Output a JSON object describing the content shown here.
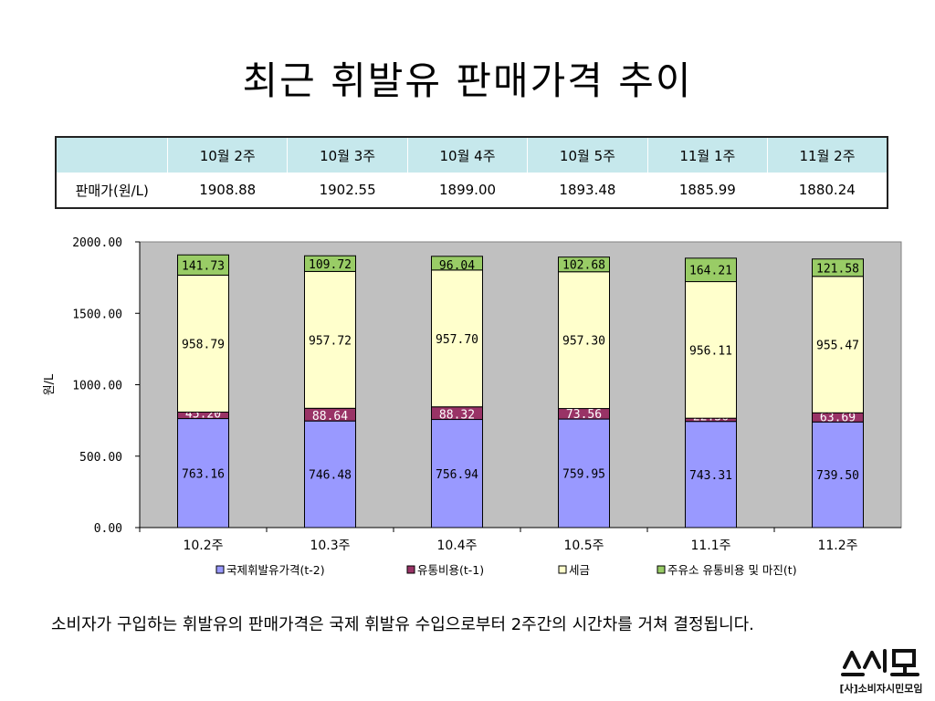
{
  "title": "최근 휘발유 판매가격 추이",
  "table": {
    "headers": [
      "",
      "10월 2주",
      "10월 3주",
      "10월 4주",
      "10월 5주",
      "11월 1주",
      "11월 2주"
    ],
    "row_label": "판매가(원/L)",
    "values": [
      "1908.88",
      "1902.55",
      "1899.00",
      "1893.48",
      "1885.99",
      "1880.24"
    ]
  },
  "chart_data": {
    "type": "bar",
    "stacked": true,
    "categories": [
      "10.2주",
      "10.3주",
      "10.4주",
      "10.5주",
      "11.1주",
      "11.2주"
    ],
    "ylabel": "원/L",
    "ylim": [
      0,
      2000
    ],
    "yticks": [
      "0.00",
      "500.00",
      "1000.00",
      "1500.00",
      "2000.00"
    ],
    "grid": false,
    "legend_position": "bottom",
    "series": [
      {
        "name": "국제휘발유가격(t-2)",
        "color": "#9999ff",
        "values": [
          763.16,
          746.48,
          756.94,
          759.95,
          743.31,
          739.5
        ],
        "labels": [
          "763.16",
          "746.48",
          "756.94",
          "759.95",
          "743.31",
          "739.50"
        ]
      },
      {
        "name": "유통비용(t-1)",
        "color": "#993366",
        "values": [
          45.2,
          88.64,
          88.32,
          73.56,
          22.36,
          63.69
        ],
        "labels": [
          "45.20",
          "88.64",
          "88.32",
          "73.56",
          "22.36",
          "63.69"
        ]
      },
      {
        "name": "세금",
        "color": "#ffffcc",
        "values": [
          958.79,
          957.72,
          957.7,
          957.3,
          956.11,
          955.47
        ],
        "labels": [
          "958.79",
          "957.72",
          "957.70",
          "957.30",
          "956.11",
          "955.47"
        ]
      },
      {
        "name": "주유소 유통비용 및 마진(t)",
        "color": "#99cc66",
        "values": [
          141.73,
          109.72,
          96.04,
          102.68,
          164.21,
          121.58
        ],
        "labels": [
          "141.73",
          "109.72",
          "96.04",
          "102.68",
          "164.21",
          "121.58"
        ]
      }
    ],
    "plot_area_color": "#c0c0c0"
  },
  "note": "소비자가 구입하는 휘발유의 판매가격은 국제 휘발유 수입으로부터 2주간의 시간차를 거쳐 결정됩니다.",
  "logo": {
    "main": "소시모",
    "sub": "[사]소비자시민모임"
  }
}
